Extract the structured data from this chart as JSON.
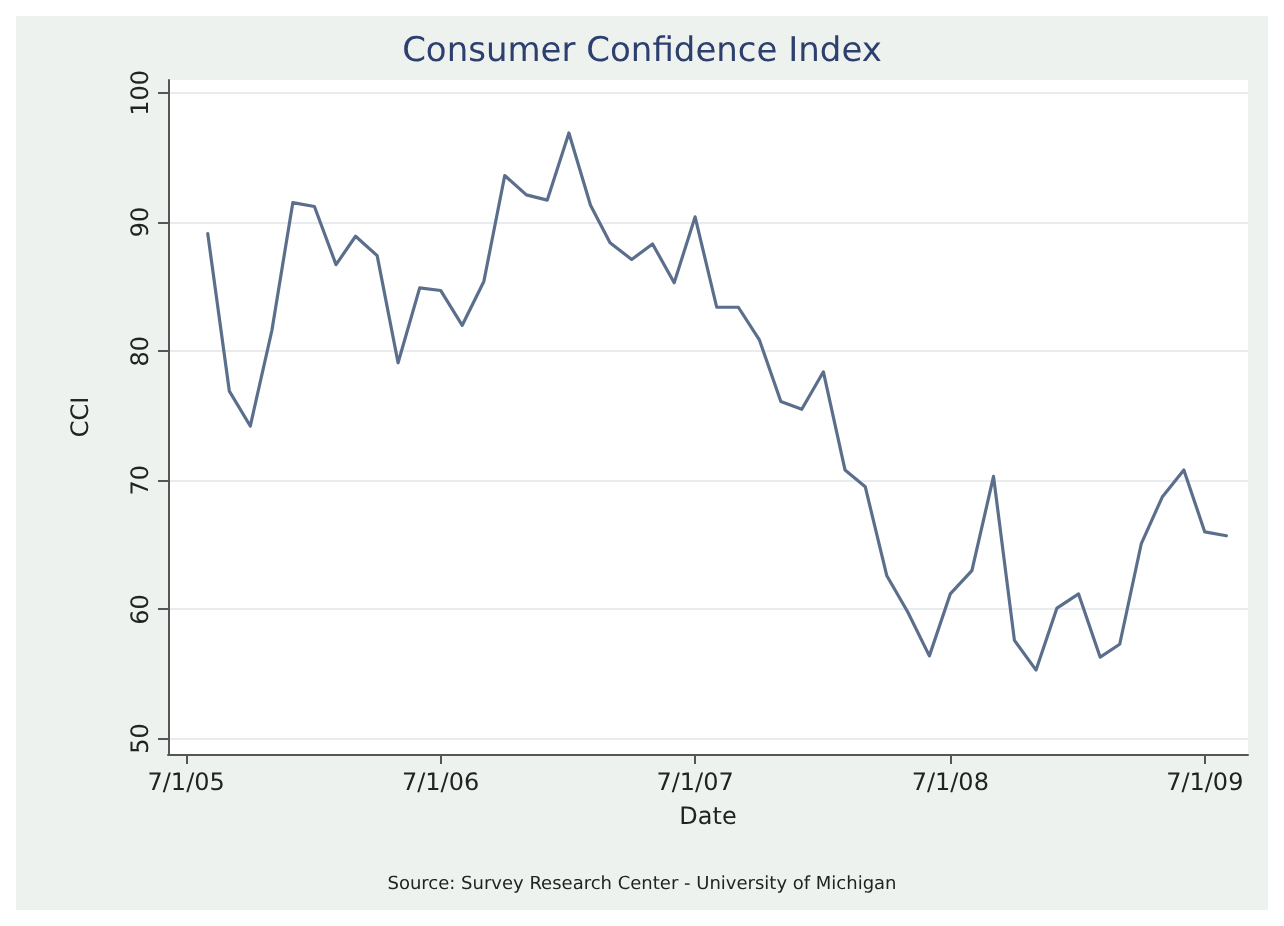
{
  "chart_data": {
    "type": "line",
    "title": "Consumer Confidence Index",
    "xlabel": "Date",
    "ylabel": "CCI",
    "x": [
      "2005-08",
      "2005-09",
      "2005-10",
      "2005-11",
      "2005-12",
      "2006-01",
      "2006-02",
      "2006-03",
      "2006-04",
      "2006-05",
      "2006-06",
      "2006-07",
      "2006-08",
      "2006-09",
      "2006-10",
      "2006-11",
      "2006-12",
      "2007-01",
      "2007-02",
      "2007-03",
      "2007-04",
      "2007-05",
      "2007-06",
      "2007-07",
      "2007-08",
      "2007-09",
      "2007-10",
      "2007-11",
      "2007-12",
      "2008-01",
      "2008-02",
      "2008-03",
      "2008-04",
      "2008-05",
      "2008-06",
      "2008-07",
      "2008-08",
      "2008-09",
      "2008-10",
      "2008-11",
      "2008-12",
      "2009-01",
      "2009-02",
      "2009-03",
      "2009-04",
      "2009-05",
      "2009-06",
      "2009-07",
      "2009-08"
    ],
    "series": [
      {
        "color": "#5b6f8c",
        "values": [
          89.1,
          76.9,
          74.2,
          81.6,
          91.5,
          91.2,
          86.7,
          88.9,
          87.4,
          79.1,
          84.9,
          84.7,
          82.0,
          85.4,
          93.6,
          92.1,
          91.7,
          96.9,
          91.3,
          88.4,
          87.1,
          88.3,
          85.3,
          90.4,
          83.4,
          83.4,
          80.9,
          76.1,
          75.5,
          78.4,
          70.8,
          69.5,
          62.6,
          59.8,
          56.4,
          61.2,
          63.0,
          70.3,
          57.6,
          55.3,
          60.1,
          61.2,
          56.3,
          57.3,
          65.1,
          68.7,
          70.8,
          66.0,
          65.7
        ]
      }
    ],
    "xlim": [
      "2005-06-05",
      "2009-09-01"
    ],
    "xticks": [
      {
        "value": "2005-07-01",
        "label": "7/1/05"
      },
      {
        "value": "2006-07-01",
        "label": "7/1/06"
      },
      {
        "value": "2007-07-01",
        "label": "7/1/07"
      },
      {
        "value": "2008-07-01",
        "label": "7/1/08"
      },
      {
        "value": "2009-07-01",
        "label": "7/1/09"
      }
    ],
    "ylim": [
      48.8,
      101
    ],
    "yticks": [
      50,
      60,
      70,
      80,
      90,
      100
    ],
    "grid": "y",
    "marker": "none",
    "line_style": "solid",
    "annotations": [
      "Source: Survey Research Center - University of Michigan"
    ]
  }
}
